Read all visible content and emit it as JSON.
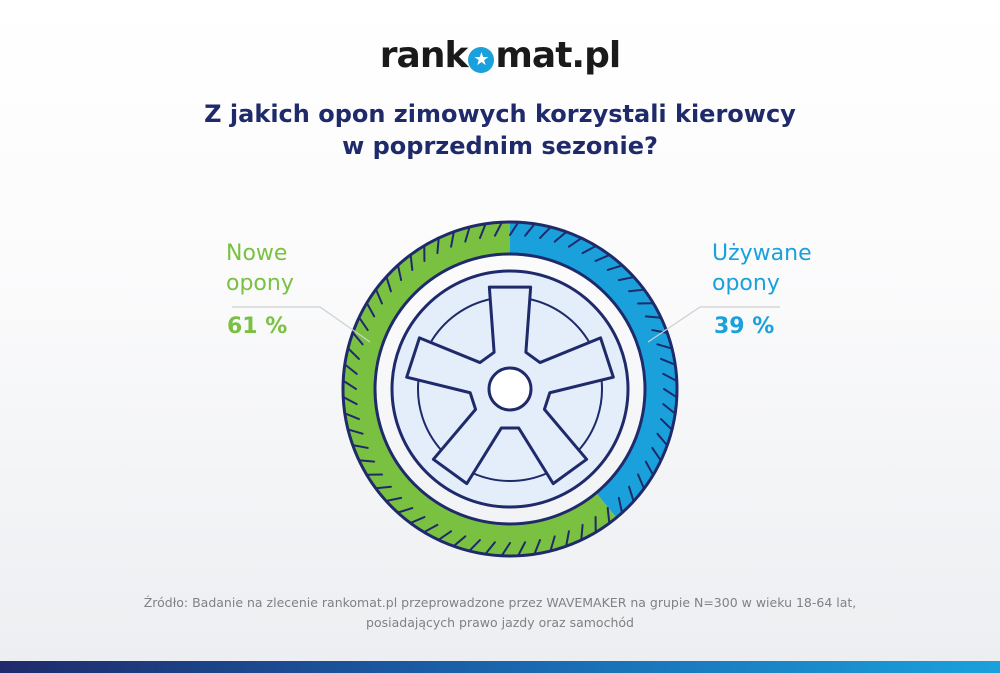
{
  "header": {
    "logo_left": "rank",
    "logo_right": "mat.pl",
    "title_line1": "Z jakich opon zimowych korzystali kierowcy",
    "title_line2": "w poprzednim sezonie?"
  },
  "chart_data": {
    "type": "pie",
    "title": "Z jakich opon zimowych korzystali kierowcy w poprzednim sezonie?",
    "series": [
      {
        "name": "Nowe opony",
        "label_line1": "Nowe",
        "label_line2": "opony",
        "value": 61,
        "display": "61 %",
        "color": "#7ac142"
      },
      {
        "name": "Używane opony",
        "label_line1": "Używane",
        "label_line2": "opony",
        "value": 39,
        "display": "39 %",
        "color": "#1aa1dc"
      }
    ]
  },
  "footer": {
    "source_line1": "Źródło: Badanie na zlecenie rankomat.pl przeprowadzone przez WAVEMAKER na grupie N=300 w wieku 18-64 lat,",
    "source_line2": "posiadających prawo jazdy oraz samochód"
  },
  "colors": {
    "title": "#1f2a6b",
    "rim_fill": "#e3eefa",
    "rim_stroke": "#1f2a6b",
    "brand_blue": "#1aa1dc"
  }
}
